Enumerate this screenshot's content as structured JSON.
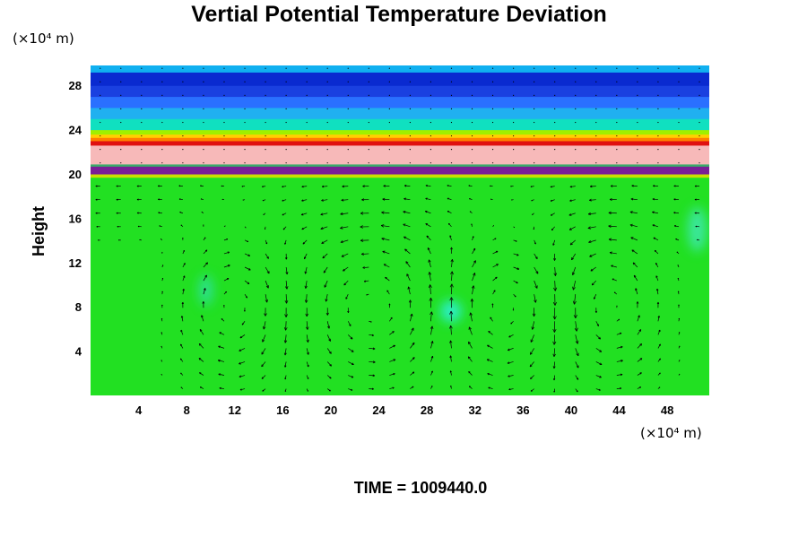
{
  "chart_data": {
    "type": "heatmap",
    "title": "Vertial Potential Temperature Deviation",
    "ylabel": "Height",
    "xlabel": "",
    "y_unit_label": "(×10⁴ m)",
    "x_unit_label": "(×10⁴ m)",
    "footer": "TIME = 1009440.0",
    "xlim": [
      0,
      51.5
    ],
    "ylim": [
      0,
      29.8
    ],
    "x_ticks": [
      4,
      8,
      12,
      16,
      20,
      24,
      28,
      32,
      36,
      40,
      44,
      48
    ],
    "y_ticks": [
      4,
      8,
      12,
      16,
      20,
      24,
      28
    ],
    "x_tick_labels": [
      "4",
      "8",
      "12",
      "16",
      "20",
      "24",
      "28",
      "32",
      "36",
      "40",
      "44",
      "48"
    ],
    "y_tick_labels": [
      "4",
      "8",
      "12",
      "16",
      "20",
      "24",
      "28"
    ],
    "bands": [
      {
        "y0": 0,
        "y1": 19.7,
        "color": "#22e022"
      },
      {
        "y0": 19.7,
        "y1": 20.0,
        "color": "#c8e000"
      },
      {
        "y0": 20.0,
        "y1": 20.7,
        "color": "#7a1e96"
      },
      {
        "y0": 20.7,
        "y1": 20.9,
        "color": "#3aaa6a"
      },
      {
        "y0": 20.9,
        "y1": 22.6,
        "color": "#f7b9b9"
      },
      {
        "y0": 22.6,
        "y1": 23.0,
        "color": "#e01010"
      },
      {
        "y0": 23.0,
        "y1": 23.3,
        "color": "#ff8000"
      },
      {
        "y0": 23.3,
        "y1": 23.6,
        "color": "#ffd000"
      },
      {
        "y0": 23.6,
        "y1": 24.0,
        "color": "#a0f000"
      },
      {
        "y0": 24.0,
        "y1": 25.0,
        "color": "#10e0c0"
      },
      {
        "y0": 25.0,
        "y1": 26.0,
        "color": "#20b0f0"
      },
      {
        "y0": 26.0,
        "y1": 27.0,
        "color": "#2a70ff"
      },
      {
        "y0": 27.0,
        "y1": 28.0,
        "color": "#1a40e0"
      },
      {
        "y0": 28.0,
        "y1": 29.2,
        "color": "#0a2ad0"
      },
      {
        "y0": 29.2,
        "y1": 29.8,
        "color": "#10b0f0"
      }
    ],
    "cyan_patches": [
      {
        "x": 30.0,
        "y": 7.6,
        "rx": 0.9,
        "ry": 1.0,
        "color": "#30f0e0"
      },
      {
        "x": 9.6,
        "y": 9.5,
        "rx": 0.6,
        "ry": 1.4,
        "color": "#30e0a0"
      },
      {
        "x": 50.5,
        "y": 15.0,
        "rx": 0.8,
        "ry": 2.0,
        "color": "#40e8b0"
      }
    ],
    "circulation_cells": [
      {
        "cx": 12.0,
        "cy": 8.0,
        "rx": 4.5,
        "ry": 7.0,
        "dir": -1
      },
      {
        "cx": 23.5,
        "cy": 8.0,
        "rx": 6.0,
        "ry": 7.0,
        "dir": 1
      },
      {
        "cx": 34.5,
        "cy": 8.0,
        "rx": 5.0,
        "ry": 7.0,
        "dir": -1
      },
      {
        "cx": 43.0,
        "cy": 8.0,
        "rx": 4.5,
        "ry": 7.0,
        "dir": 1
      }
    ],
    "grid": false
  }
}
